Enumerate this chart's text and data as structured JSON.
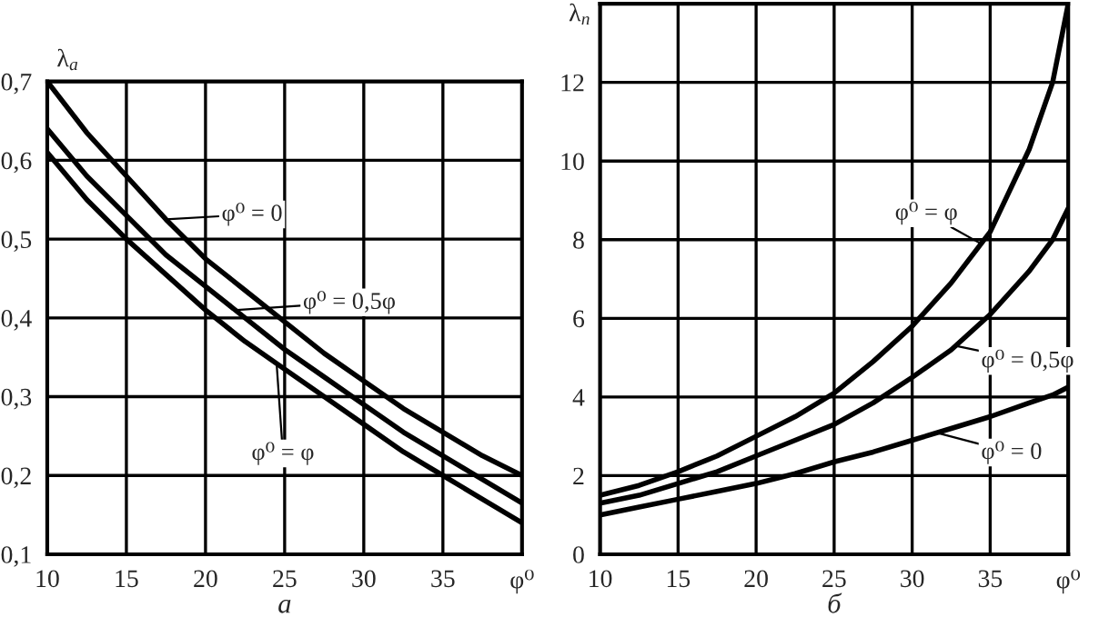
{
  "chart_data": [
    {
      "type": "line",
      "xlabel": "а",
      "ylabel": "λ$_{a}$",
      "x": [
        10,
        12.5,
        15,
        17.5,
        20,
        22.5,
        25,
        27.5,
        30,
        32.5,
        35,
        37.5,
        40
      ],
      "series": [
        {
          "color": "#000000",
          "values": [
            0.7,
            0.635,
            0.58,
            0.525,
            0.475,
            0.435,
            0.395,
            0.355,
            0.32,
            0.285,
            0.255,
            0.225,
            0.2
          ]
        },
        {
          "color": "#000000",
          "values": [
            0.64,
            0.58,
            0.53,
            0.48,
            0.44,
            0.4,
            0.36,
            0.325,
            0.29,
            0.255,
            0.225,
            0.195,
            0.165
          ]
        },
        {
          "color": "#000000",
          "values": [
            0.61,
            0.55,
            0.5,
            0.455,
            0.41,
            0.37,
            0.335,
            0.3,
            0.265,
            0.23,
            0.2,
            0.17,
            0.14
          ]
        }
      ],
      "xlim": [
        10,
        40
      ],
      "xticks": [
        10,
        15,
        20,
        25,
        30,
        35,
        {
          "value": 40,
          "label": "φ⁰"
        }
      ],
      "ylim": [
        0.1,
        0.7
      ],
      "yticks": [
        {
          "value": 0.1,
          "label": "0,1"
        },
        {
          "value": 0.2,
          "label": "0,2"
        },
        {
          "value": 0.3,
          "label": "0,3"
        },
        {
          "value": 0.4,
          "label": "0,4"
        },
        {
          "value": 0.5,
          "label": "0,5"
        },
        {
          "value": 0.6,
          "label": "0,6"
        },
        {
          "value": 0.7,
          "label": "0,7"
        }
      ],
      "annotations": [
        {
          "text": "φ⁰ = 0",
          "x": 17.5,
          "y": 0.525
        },
        {
          "text": "φ⁰ = 0,5φ",
          "x": 22,
          "y": 0.41
        },
        {
          "text": "φ⁰ = φ",
          "x": 24.5,
          "y": 0.34
        }
      ],
      "grid": true,
      "line_style": "solid",
      "marker": "none"
    },
    {
      "type": "line",
      "xlabel": "б",
      "ylabel": "λ$_{п}$",
      "x": [
        10,
        12.5,
        15,
        17.5,
        20,
        22.5,
        25,
        27.5,
        30,
        32.5,
        35,
        37.5,
        39,
        40
      ],
      "series": [
        {
          "color": "#000000",
          "values": [
            1.5,
            1.75,
            2.1,
            2.5,
            3.0,
            3.5,
            4.1,
            4.9,
            5.8,
            6.9,
            8.2,
            10.3,
            12.0,
            14.0
          ]
        },
        {
          "color": "#000000",
          "values": [
            1.3,
            1.5,
            1.8,
            2.1,
            2.5,
            2.9,
            3.3,
            3.85,
            4.5,
            5.2,
            6.1,
            7.2,
            8.0,
            8.8
          ]
        },
        {
          "color": "#000000",
          "values": [
            1.0,
            1.2,
            1.4,
            1.6,
            1.8,
            2.05,
            2.35,
            2.6,
            2.9,
            3.2,
            3.5,
            3.85,
            4.05,
            4.25
          ]
        }
      ],
      "xlim": [
        10,
        40
      ],
      "xticks": [
        10,
        15,
        20,
        25,
        30,
        35,
        {
          "value": 40,
          "label": "φ⁰"
        }
      ],
      "ylim": [
        0,
        14
      ],
      "yticks": [
        0,
        2,
        4,
        6,
        8,
        10,
        12
      ],
      "annotations": [
        {
          "text": "φ⁰ = φ",
          "x": 34.4,
          "y": 7.9
        },
        {
          "text": "φ⁰ = 0,5φ",
          "x": 32.8,
          "y": 5.3
        },
        {
          "text": "φ⁰ = 0",
          "x": 31.5,
          "y": 3.1
        }
      ],
      "grid": true,
      "line_style": "solid",
      "marker": "none"
    }
  ]
}
